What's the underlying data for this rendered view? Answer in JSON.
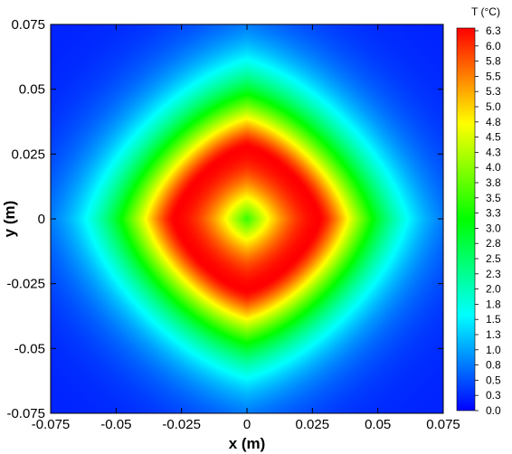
{
  "chart_data": {
    "type": "heatmap",
    "title": "",
    "xlabel": "x (m)",
    "ylabel": "y (m)",
    "xlim": [
      -0.075,
      0.075
    ],
    "ylim": [
      -0.075,
      0.075
    ],
    "x_ticks": [
      "-0.075",
      "-0.05",
      "-0.025",
      "0",
      "0.025",
      "0.05",
      "0.075"
    ],
    "y_ticks": [
      "0.075",
      "0.05",
      "0.025",
      "0",
      "-0.025",
      "-0.05",
      "-0.075"
    ],
    "grid": false,
    "field": {
      "variable": "T",
      "unit": "°C",
      "center_value": 3.5,
      "peak_value": 6.3,
      "peak_radius_m": 0.028,
      "corner_value": 0.2,
      "pattern": "ring of maximum temperature around a cooler center, decaying toward the corners with diamond-shaped contours"
    },
    "colorbar": {
      "title": "T (°C)",
      "min": 0.0,
      "max": 6.3,
      "ticks": [
        "6.3",
        "6.0",
        "5.8",
        "5.5",
        "5.3",
        "5.0",
        "4.8",
        "4.5",
        "4.3",
        "4.0",
        "3.8",
        "3.5",
        "3.3",
        "3.0",
        "2.8",
        "2.5",
        "2.3",
        "2.0",
        "1.8",
        "1.5",
        "1.3",
        "1.0",
        "0.8",
        "0.5",
        "0.3",
        "0.0"
      ],
      "colors": [
        "#0000ff",
        "#00ffff",
        "#00ff00",
        "#ffff00",
        "#ff0000"
      ]
    }
  }
}
